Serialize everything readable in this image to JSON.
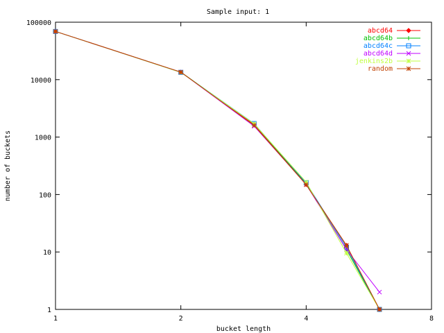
{
  "chart_data": {
    "type": "line",
    "title": "Sample input: 1",
    "xlabel": "bucket length",
    "ylabel": "number of buckets",
    "x_scale": "log2",
    "y_scale": "log10",
    "xlim": [
      1,
      8
    ],
    "ylim": [
      1,
      100000
    ],
    "x_ticks": [
      {
        "value": 1,
        "label": "1"
      },
      {
        "value": 2,
        "label": "2"
      },
      {
        "value": 4,
        "label": "4"
      },
      {
        "value": 8,
        "label": "8"
      }
    ],
    "y_ticks": [
      {
        "value": 1,
        "label": "1"
      },
      {
        "value": 10,
        "label": "10"
      },
      {
        "value": 100,
        "label": "100"
      },
      {
        "value": 1000,
        "label": "1000"
      },
      {
        "value": 10000,
        "label": "10000"
      },
      {
        "value": 100000,
        "label": "100000"
      }
    ],
    "grid": false,
    "legend_position": "top-right",
    "series": [
      {
        "name": "abcd64",
        "color": "#ff0000",
        "marker": "diamond",
        "points": [
          [
            1,
            69000
          ],
          [
            2,
            13500
          ],
          [
            3,
            1650
          ],
          [
            4,
            150
          ],
          [
            5,
            13
          ],
          [
            6,
            1
          ]
        ]
      },
      {
        "name": "abcd64b",
        "color": "#00c000",
        "marker": "plus",
        "points": [
          [
            1,
            69000
          ],
          [
            2,
            13500
          ],
          [
            3,
            1700
          ],
          [
            4,
            155
          ],
          [
            5,
            11
          ],
          [
            6,
            1
          ]
        ]
      },
      {
        "name": "abcd64c",
        "color": "#0080ff",
        "marker": "square",
        "points": [
          [
            1,
            69000
          ],
          [
            2,
            13400
          ],
          [
            3,
            1720
          ],
          [
            4,
            160
          ],
          [
            5,
            12
          ],
          [
            6,
            1
          ]
        ]
      },
      {
        "name": "abcd64d",
        "color": "#c000ff",
        "marker": "x",
        "points": [
          [
            1,
            69000
          ],
          [
            2,
            13500
          ],
          [
            3,
            1550
          ],
          [
            4,
            150
          ],
          [
            5,
            11
          ],
          [
            6,
            2
          ]
        ]
      },
      {
        "name": "jenkins2b",
        "color": "#c0ff40",
        "marker": "asterisk",
        "points": [
          [
            1,
            69000
          ],
          [
            2,
            13400
          ],
          [
            3,
            1700
          ],
          [
            4,
            165
          ],
          [
            5,
            9.5
          ],
          [
            6,
            1
          ]
        ]
      },
      {
        "name": "random",
        "color": "#c04000",
        "marker": "asterisk",
        "points": [
          [
            1,
            69000
          ],
          [
            2,
            13500
          ],
          [
            3,
            1600
          ],
          [
            4,
            148
          ],
          [
            5,
            13
          ],
          [
            6,
            1
          ]
        ]
      }
    ]
  }
}
